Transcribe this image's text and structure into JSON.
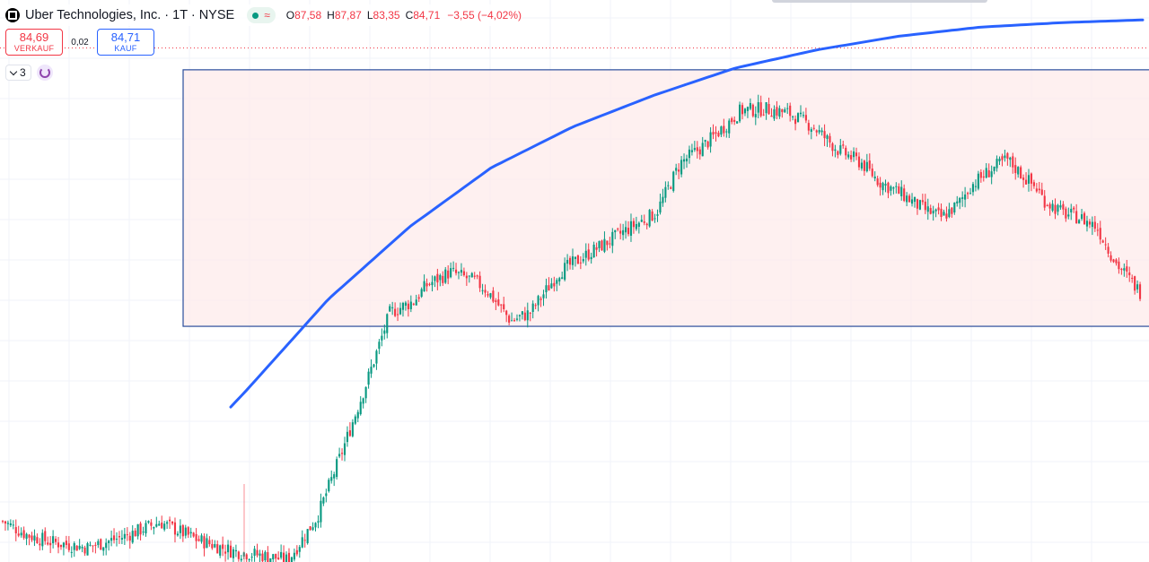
{
  "header": {
    "symbol_title": "Uber Technologies, Inc. · 1T · NYSE",
    "status_wave": "≈",
    "ohlc": {
      "o_label": "O",
      "o_value": "87,58",
      "h_label": "H",
      "h_value": "87,87",
      "l_label": "L",
      "l_value": "83,35",
      "c_label": "C",
      "c_value": "84,71",
      "change": "−3,55 (−4,02%)"
    }
  },
  "trade": {
    "sell_price": "84,69",
    "sell_label": "VERKAUF",
    "spread": "0,02",
    "buy_price": "84,71",
    "buy_label": "KAUF"
  },
  "indicators": {
    "count": "3"
  },
  "colors": {
    "up": "#089981",
    "down": "#f23645",
    "ma": "#2962ff",
    "rect_border": "#2a4d9b",
    "rect_fill": "#fdeaea",
    "grid": "#f0f3fa"
  },
  "chart_data": {
    "type": "candlestick",
    "ylim": [
      28,
      90
    ],
    "close_price": 84.71,
    "range_box": {
      "top": 82.3,
      "bottom": 54.0
    },
    "candle_count": 430,
    "closes_path": [
      [
        0,
        32.5
      ],
      [
        10,
        31.0
      ],
      [
        20,
        30.2
      ],
      [
        35,
        29.6
      ],
      [
        50,
        30.8
      ],
      [
        65,
        32.4
      ],
      [
        80,
        30.5
      ],
      [
        95,
        29.2
      ],
      [
        110,
        28.6
      ],
      [
        118,
        28.2
      ],
      [
        130,
        33.0
      ],
      [
        140,
        40.0
      ],
      [
        150,
        47.5
      ],
      [
        160,
        55.5
      ],
      [
        170,
        56.8
      ],
      [
        175,
        58.5
      ],
      [
        185,
        60.0
      ],
      [
        195,
        59.0
      ],
      [
        200,
        58.0
      ],
      [
        210,
        54.6
      ],
      [
        218,
        55.5
      ],
      [
        230,
        60.0
      ],
      [
        245,
        62.5
      ],
      [
        260,
        65.0
      ],
      [
        270,
        66.5
      ],
      [
        280,
        72.0
      ],
      [
        290,
        74.0
      ],
      [
        300,
        76.5
      ],
      [
        305,
        77.8
      ],
      [
        315,
        78.0
      ],
      [
        325,
        77.5
      ],
      [
        335,
        76.0
      ],
      [
        345,
        73.5
      ],
      [
        355,
        72.0
      ],
      [
        362,
        70.0
      ],
      [
        372,
        68.5
      ],
      [
        380,
        67.0
      ],
      [
        388,
        66.0
      ],
      [
        395,
        67.5
      ],
      [
        400,
        69.5
      ],
      [
        408,
        71.2
      ],
      [
        415,
        72.4
      ],
      [
        422,
        70.5
      ],
      [
        428,
        69.0
      ],
      [
        430,
        68.0
      ],
      [
        438,
        66.5
      ],
      [
        445,
        66.0
      ],
      [
        452,
        65.0
      ],
      [
        460,
        61.0
      ],
      [
        470,
        57.8
      ]
    ],
    "ma_path": [
      [
        0,
        23.5
      ],
      [
        50,
        29.0
      ],
      [
        100,
        37.5
      ],
      [
        150,
        47.0
      ],
      [
        200,
        57.0
      ],
      [
        250,
        65.0
      ],
      [
        300,
        71.5
      ],
      [
        350,
        76.0
      ],
      [
        400,
        79.5
      ],
      [
        450,
        82.5
      ],
      [
        500,
        84.5
      ],
      [
        550,
        86.0
      ],
      [
        600,
        87.0
      ],
      [
        650,
        87.5
      ],
      [
        700,
        87.8
      ]
    ]
  }
}
